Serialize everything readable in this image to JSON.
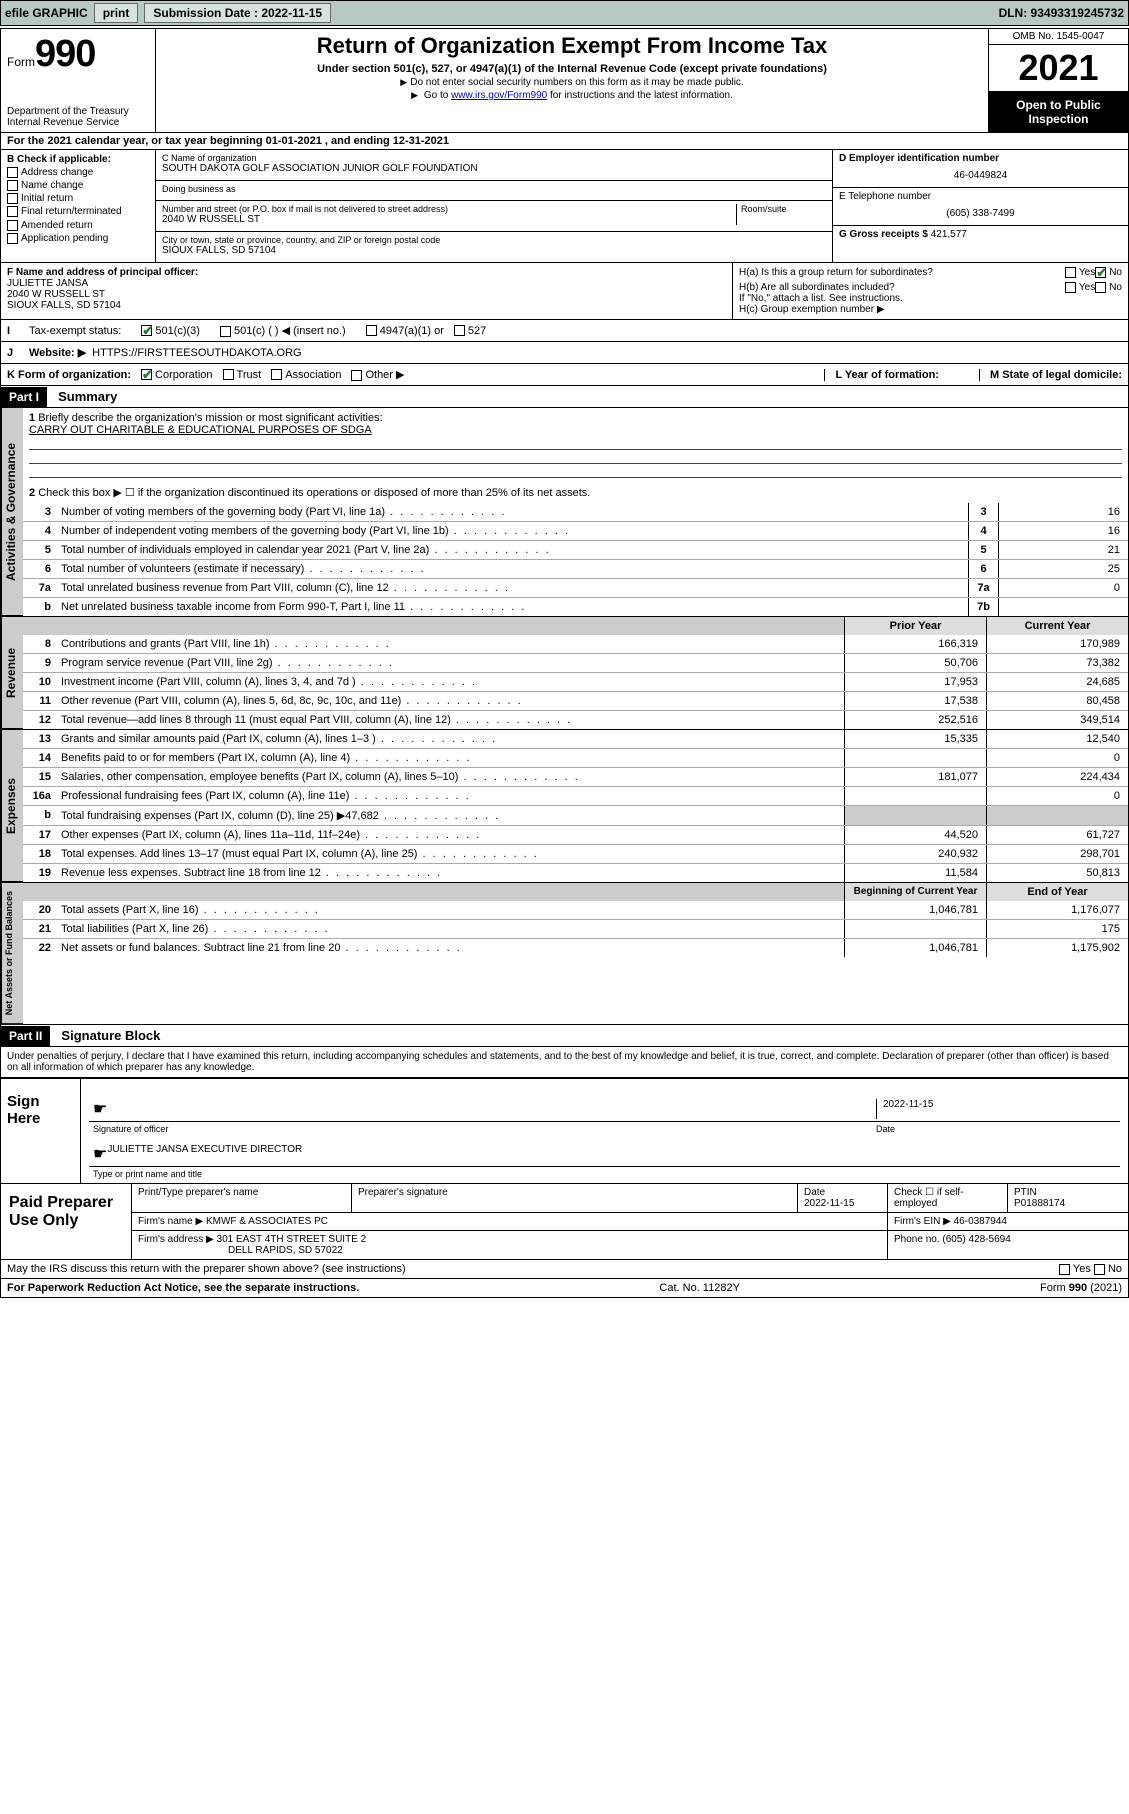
{
  "topbar": {
    "efile": "efile GRAPHIC",
    "print": "print",
    "sub_label": "Submission Date : 2022-11-15",
    "dln": "DLN: 93493319245732"
  },
  "header": {
    "form_word": "Form",
    "form_num": "990",
    "dept": "Department of the Treasury Internal Revenue Service",
    "title": "Return of Organization Exempt From Income Tax",
    "subtitle": "Under section 501(c), 527, or 4947(a)(1) of the Internal Revenue Code (except private foundations)",
    "note1": "Do not enter social security numbers on this form as it may be made public.",
    "note2_pre": "Go to ",
    "note2_link": "www.irs.gov/Form990",
    "note2_post": " for instructions and the latest information.",
    "omb": "OMB No. 1545-0047",
    "year": "2021",
    "open": "Open to Public Inspection"
  },
  "row_a": "For the 2021 calendar year, or tax year beginning 01-01-2021   , and ending 12-31-2021",
  "col_b": {
    "hdr": "B Check if applicable:",
    "items": [
      "Address change",
      "Name change",
      "Initial return",
      "Final return/terminated",
      "Amended return",
      "Application pending"
    ]
  },
  "col_c": {
    "name_lbl": "C Name of organization",
    "name": "SOUTH DAKOTA GOLF ASSOCIATION JUNIOR GOLF FOUNDATION",
    "dba_lbl": "Doing business as",
    "dba": "",
    "addr_lbl": "Number and street (or P.O. box if mail is not delivered to street address)",
    "room_lbl": "Room/suite",
    "addr": "2040 W RUSSELL ST",
    "city_lbl": "City or town, state or province, country, and ZIP or foreign postal code",
    "city": "SIOUX FALLS, SD  57104"
  },
  "col_d": {
    "ein_lbl": "D Employer identification number",
    "ein": "46-0449824",
    "tel_lbl": "E Telephone number",
    "tel": "(605) 338-7499",
    "gross_lbl": "G Gross receipts $",
    "gross": "421,577"
  },
  "row_f": {
    "lbl": "F Name and address of principal officer:",
    "name": "JULIETTE JANSA",
    "addr1": "2040 W RUSSELL ST",
    "addr2": "SIOUX FALLS, SD  57104"
  },
  "row_h": {
    "ha": "H(a)  Is this a group return for subordinates?",
    "hb": "H(b)  Are all subordinates included?",
    "hb_note": "If \"No,\" attach a list. See instructions.",
    "hc": "H(c)  Group exemption number ▶",
    "yes": "Yes",
    "no": "No"
  },
  "row_i": {
    "lbl": "Tax-exempt status:",
    "opts": [
      "501(c)(3)",
      "501(c) (   ) ◀ (insert no.)",
      "4947(a)(1) or",
      "527"
    ]
  },
  "row_j": {
    "lbl": "Website: ▶",
    "val": "HTTPS://FIRSTTEESOUTHDAKOTA.ORG"
  },
  "row_k": {
    "lbl": "K Form of organization:",
    "opts": [
      "Corporation",
      "Trust",
      "Association",
      "Other ▶"
    ],
    "l_lbl": "L Year of formation:",
    "l_val": "",
    "m_lbl": "M State of legal domicile:",
    "m_val": ""
  },
  "part1": {
    "hdr": "Part I",
    "title": "Summary",
    "line1_lbl": "Briefly describe the organization's mission or most significant activities:",
    "line1_val": "CARRY OUT CHARITABLE & EDUCATIONAL PURPOSES OF SDGA",
    "line2": "Check this box ▶ ☐  if the organization discontinued its operations or disposed of more than 25% of its net assets.",
    "lines_gov": [
      {
        "n": "3",
        "t": "Number of voting members of the governing body (Part VI, line 1a)",
        "b": "3",
        "v": "16"
      },
      {
        "n": "4",
        "t": "Number of independent voting members of the governing body (Part VI, line 1b)",
        "b": "4",
        "v": "16"
      },
      {
        "n": "5",
        "t": "Total number of individuals employed in calendar year 2021 (Part V, line 2a)",
        "b": "5",
        "v": "21"
      },
      {
        "n": "6",
        "t": "Total number of volunteers (estimate if necessary)",
        "b": "6",
        "v": "25"
      },
      {
        "n": "7a",
        "t": "Total unrelated business revenue from Part VIII, column (C), line 12",
        "b": "7a",
        "v": "0"
      },
      {
        "n": "b",
        "t": "Net unrelated business taxable income from Form 990-T, Part I, line 11",
        "b": "7b",
        "v": ""
      }
    ],
    "hdr_prior": "Prior Year",
    "hdr_curr": "Current Year",
    "lines_rev": [
      {
        "n": "8",
        "t": "Contributions and grants (Part VIII, line 1h)",
        "p": "166,319",
        "c": "170,989"
      },
      {
        "n": "9",
        "t": "Program service revenue (Part VIII, line 2g)",
        "p": "50,706",
        "c": "73,382"
      },
      {
        "n": "10",
        "t": "Investment income (Part VIII, column (A), lines 3, 4, and 7d )",
        "p": "17,953",
        "c": "24,685"
      },
      {
        "n": "11",
        "t": "Other revenue (Part VIII, column (A), lines 5, 6d, 8c, 9c, 10c, and 11e)",
        "p": "17,538",
        "c": "80,458"
      },
      {
        "n": "12",
        "t": "Total revenue—add lines 8 through 11 (must equal Part VIII, column (A), line 12)",
        "p": "252,516",
        "c": "349,514"
      }
    ],
    "lines_exp": [
      {
        "n": "13",
        "t": "Grants and similar amounts paid (Part IX, column (A), lines 1–3 )",
        "p": "15,335",
        "c": "12,540"
      },
      {
        "n": "14",
        "t": "Benefits paid to or for members (Part IX, column (A), line 4)",
        "p": "",
        "c": "0"
      },
      {
        "n": "15",
        "t": "Salaries, other compensation, employee benefits (Part IX, column (A), lines 5–10)",
        "p": "181,077",
        "c": "224,434"
      },
      {
        "n": "16a",
        "t": "Professional fundraising fees (Part IX, column (A), line 11e)",
        "p": "",
        "c": "0"
      },
      {
        "n": "b",
        "t": "Total fundraising expenses (Part IX, column (D), line 25) ▶47,682",
        "p": "shade",
        "c": "shade"
      },
      {
        "n": "17",
        "t": "Other expenses (Part IX, column (A), lines 11a–11d, 11f–24e)",
        "p": "44,520",
        "c": "61,727"
      },
      {
        "n": "18",
        "t": "Total expenses. Add lines 13–17 (must equal Part IX, column (A), line 25)",
        "p": "240,932",
        "c": "298,701"
      },
      {
        "n": "19",
        "t": "Revenue less expenses. Subtract line 18 from line 12",
        "p": "11,584",
        "c": "50,813"
      }
    ],
    "hdr_begin": "Beginning of Current Year",
    "hdr_end": "End of Year",
    "lines_net": [
      {
        "n": "20",
        "t": "Total assets (Part X, line 16)",
        "p": "1,046,781",
        "c": "1,176,077"
      },
      {
        "n": "21",
        "t": "Total liabilities (Part X, line 26)",
        "p": "",
        "c": "175"
      },
      {
        "n": "22",
        "t": "Net assets or fund balances. Subtract line 21 from line 20",
        "p": "1,046,781",
        "c": "1,175,902"
      }
    ],
    "vtab_gov": "Activities & Governance",
    "vtab_rev": "Revenue",
    "vtab_exp": "Expenses",
    "vtab_net": "Net Assets or Fund Balances"
  },
  "part2": {
    "hdr": "Part II",
    "title": "Signature Block",
    "decl": "Under penalties of perjury, I declare that I have examined this return, including accompanying schedules and statements, and to the best of my knowledge and belief, it is true, correct, and complete. Declaration of preparer (other than officer) is based on all information of which preparer has any knowledge.",
    "sign_here": "Sign Here",
    "sig_officer": "Signature of officer",
    "sig_date": "2022-11-15",
    "date_lbl": "Date",
    "name_title": "JULIETTE JANSA  EXECUTIVE DIRECTOR",
    "name_title_lbl": "Type or print name and title",
    "paid_label": "Paid Preparer Use Only",
    "prep_name_lbl": "Print/Type preparer's name",
    "prep_sig_lbl": "Preparer's signature",
    "prep_date_lbl": "Date",
    "prep_date": "2022-11-15",
    "self_emp": "Check ☐ if self-employed",
    "ptin_lbl": "PTIN",
    "ptin": "P01888174",
    "firm_name_lbl": "Firm's name   ▶",
    "firm_name": "KMWF & ASSOCIATES PC",
    "firm_ein_lbl": "Firm's EIN ▶",
    "firm_ein": "46-0387944",
    "firm_addr_lbl": "Firm's address ▶",
    "firm_addr1": "301 EAST 4TH STREET SUITE 2",
    "firm_addr2": "DELL RAPIDS, SD  57022",
    "phone_lbl": "Phone no.",
    "phone": "(605) 428-5694",
    "may_irs": "May the IRS discuss this return with the preparer shown above? (see instructions)"
  },
  "footer": {
    "pra": "For Paperwork Reduction Act Notice, see the separate instructions.",
    "cat": "Cat. No. 11282Y",
    "form": "Form 990 (2021)"
  }
}
